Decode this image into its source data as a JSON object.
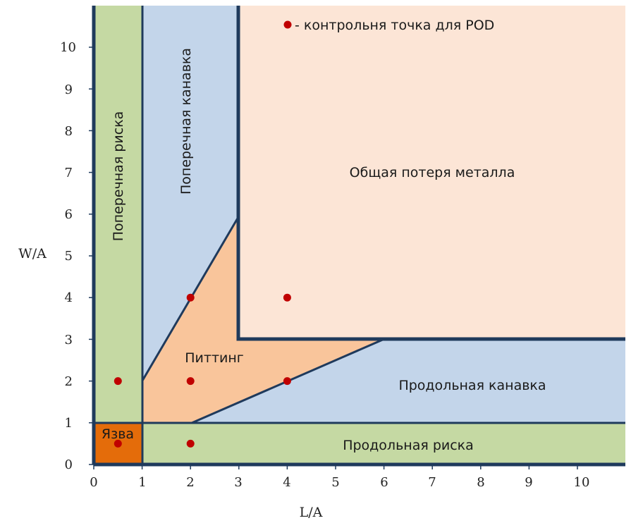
{
  "diagram": {
    "x_axis_label": "L/A",
    "y_axis_label": "W/A",
    "x_ticks": [
      "0",
      "1",
      "2",
      "3",
      "4",
      "5",
      "6",
      "7",
      "8",
      "9",
      "10"
    ],
    "y_ticks": [
      "0",
      "1",
      "2",
      "3",
      "4",
      "5",
      "6",
      "7",
      "8",
      "9",
      "10"
    ],
    "x_range": [
      0,
      11
    ],
    "y_range": [
      0,
      11
    ],
    "legend": {
      "marker": "red-dot",
      "text": "- контрольня точка для POD"
    },
    "regions": [
      {
        "key": "pitting_circ",
        "label": "Поперечная риска",
        "color": "#c5d9a3"
      },
      {
        "key": "circ_groove",
        "label": "Поперечная канавка",
        "color": "#c3d5ea"
      },
      {
        "key": "general",
        "label": "Общая потеря металла",
        "color": "#fce5d6"
      },
      {
        "key": "pitting",
        "label": "Питтинг",
        "color": "#f9c59b"
      },
      {
        "key": "axial_groove",
        "label": "Продольная канавка",
        "color": "#c3d5ea"
      },
      {
        "key": "axial_slot",
        "label": "Продольная риска",
        "color": "#c5d9a3"
      },
      {
        "key": "pinhole",
        "label": "Язва",
        "color": "#e46c0a"
      }
    ],
    "pod_points": [
      {
        "L": 0.5,
        "W": 0.5
      },
      {
        "L": 2,
        "W": 0.5
      },
      {
        "L": 0.5,
        "W": 2
      },
      {
        "L": 2,
        "W": 2
      },
      {
        "L": 4,
        "W": 2
      },
      {
        "L": 2,
        "W": 4
      },
      {
        "L": 4,
        "W": 4
      }
    ],
    "colors": {
      "border": "#1f3a5c",
      "point": "#c00000"
    }
  }
}
